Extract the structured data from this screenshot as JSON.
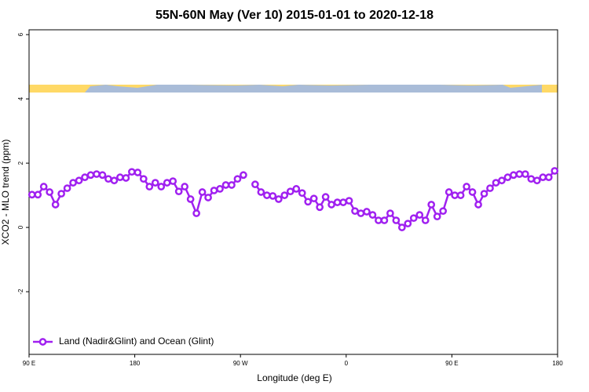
{
  "chart_data": {
    "type": "line",
    "title": "55N-60N May (Ver 10)   2015-01-01 to 2020-12-18",
    "x_label": "Longitude (deg E)",
    "y_label": "XCO2 - MLO trend (ppm)",
    "xlim": [
      90,
      540
    ],
    "ylim": [
      -3.95,
      6.15
    ],
    "xticks": [
      {
        "value": 90,
        "label": "90 E"
      },
      180,
      {
        "value": 270,
        "label": "90 W"
      },
      {
        "value": 360,
        "label": "0"
      },
      {
        "value": 450,
        "label": "90 E"
      },
      {
        "value": 540,
        "label": "180"
      }
    ],
    "yticks": [
      -2,
      0,
      2,
      4,
      6
    ],
    "legend": "bottom-left",
    "x": [
      92.5,
      97.5,
      102.5,
      107.5,
      112.5,
      117.5,
      122.5,
      127.5,
      132.5,
      137.5,
      142.5,
      147.5,
      152.5,
      157.5,
      162.5,
      167.5,
      172.5,
      177.5,
      182.5,
      187.5,
      192.5,
      197.5,
      202.5,
      207.5,
      212.5,
      217.5,
      222.5,
      227.5,
      232.5,
      237.5,
      242.5,
      247.5,
      252.5,
      257.5,
      262.5,
      267.5,
      272.5,
      277.5,
      282.5,
      287.5,
      292.5,
      297.5,
      302.5,
      307.5,
      312.5,
      317.5,
      322.5,
      327.5,
      332.5,
      337.5,
      342.5,
      347.5,
      352.5,
      357.5,
      362.5,
      367.5,
      372.5,
      377.5,
      382.5,
      387.5,
      392.5,
      397.5,
      402.5,
      407.5,
      412.5,
      417.5,
      422.5,
      427.5,
      432.5,
      437.5,
      442.5,
      447.5,
      452.5,
      457.5,
      462.5,
      467.5,
      472.5,
      477.5,
      482.5,
      487.5,
      492.5,
      497.5,
      502.5,
      507.5,
      512.5,
      517.5,
      522.5,
      527.5,
      532.5,
      537.5
    ],
    "series": [
      {
        "name": "Land (Nadir&Glint) and Ocean (Glint)",
        "color": "#a020f0",
        "values": [
          1.02,
          1.02,
          1.27,
          1.1,
          0.71,
          1.05,
          1.22,
          1.39,
          1.46,
          1.56,
          1.63,
          1.66,
          1.63,
          1.51,
          1.46,
          1.56,
          1.54,
          1.73,
          1.71,
          1.51,
          1.27,
          1.39,
          1.27,
          1.39,
          1.44,
          1.12,
          1.27,
          0.88,
          0.44,
          1.1,
          0.93,
          1.15,
          1.2,
          1.32,
          1.32,
          1.51,
          1.63,
          null,
          1.34,
          1.1,
          1.0,
          0.98,
          0.88,
          1.0,
          1.12,
          1.2,
          1.07,
          0.8,
          0.9,
          0.63,
          0.95,
          0.71,
          0.78,
          0.78,
          0.83,
          0.51,
          0.44,
          0.49,
          0.39,
          0.22,
          0.22,
          0.44,
          0.22,
          0.0,
          0.12,
          0.29,
          0.39,
          0.22,
          0.71,
          0.34,
          0.51,
          1.1,
          1.0,
          1.0,
          1.27,
          1.1,
          0.71,
          1.05,
          1.22,
          1.39,
          1.46,
          1.56,
          1.63,
          1.66,
          1.66,
          1.51,
          1.46,
          1.56,
          1.56,
          1.76
        ]
      }
    ]
  }
}
